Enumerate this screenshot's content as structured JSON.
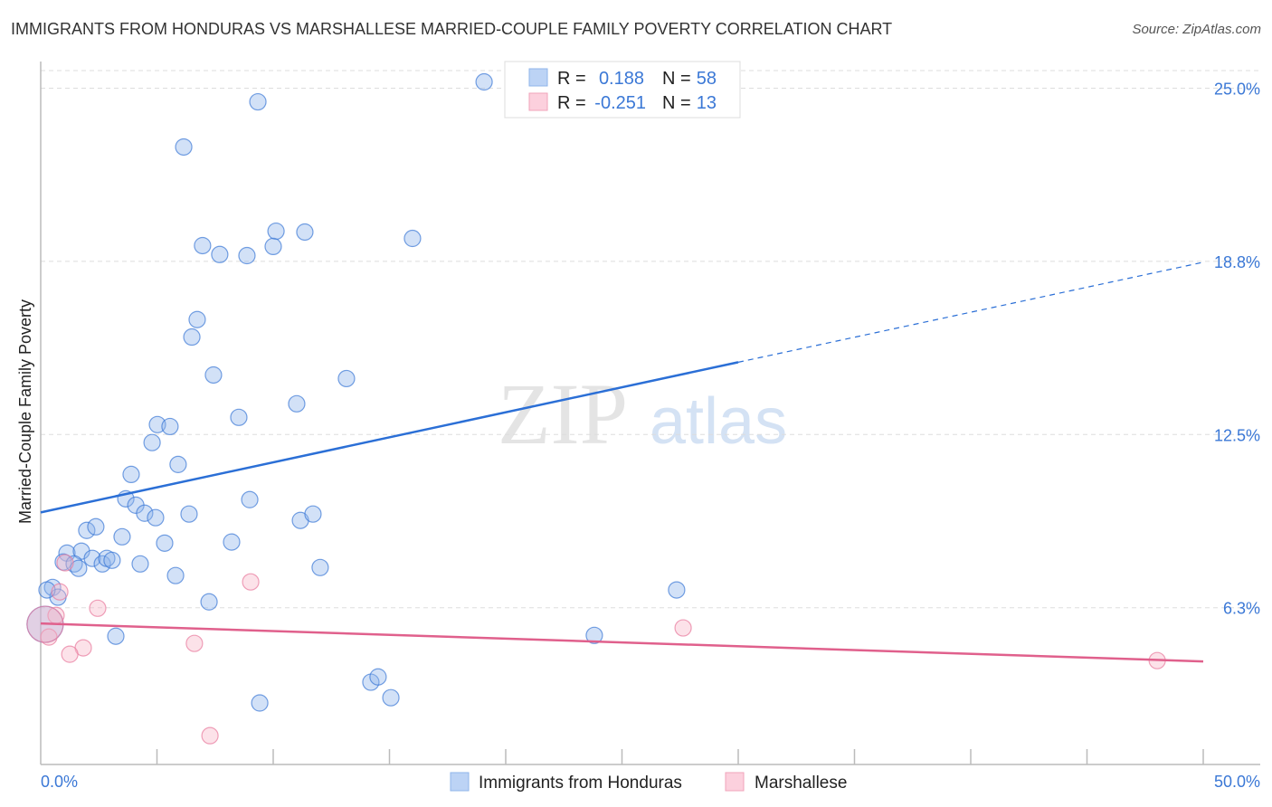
{
  "title": "IMMIGRANTS FROM HONDURAS VS MARSHALLESE MARRIED-COUPLE FAMILY POVERTY CORRELATION CHART",
  "source": "Source: ZipAtlas.com",
  "watermark": {
    "zip": "ZIP",
    "atlas": "atlas"
  },
  "chart_data": {
    "type": "scatter",
    "title": "IMMIGRANTS FROM HONDURAS VS MARSHALLESE MARRIED-COUPLE FAMILY POVERTY CORRELATION CHART",
    "xlabel": "",
    "ylabel": "Married-Couple Family Poverty",
    "xlim": [
      0,
      50
    ],
    "ylim": [
      0.59,
      25.9
    ],
    "x_tick_labels": [
      "0.0%",
      "50.0%"
    ],
    "y_ticks": [
      {
        "value": 25.0,
        "label": "25.0%"
      },
      {
        "value": 18.75,
        "label": "18.8%"
      },
      {
        "value": 12.5,
        "label": "12.5%"
      },
      {
        "value": 6.25,
        "label": "6.3%"
      }
    ],
    "grid": true,
    "legend_stats": [
      {
        "r_label": "R =",
        "r": "0.188",
        "n_label": "N =",
        "n": "58"
      },
      {
        "r_label": "R =",
        "r": "-0.251",
        "n_label": "N =",
        "n": "13"
      }
    ],
    "series": [
      {
        "name": "Immigrants from Honduras",
        "color": "#8fb4ea",
        "stroke": "#3b78d6",
        "trend": {
          "x": [
            0,
            30,
            50
          ],
          "y": [
            9.69,
            15.11,
            18.72
          ],
          "solid_to": 30
        },
        "points": [
          [
            19.07,
            25.23
          ],
          [
            9.34,
            24.51
          ],
          [
            6.15,
            22.88
          ],
          [
            10.12,
            19.84
          ],
          [
            11.36,
            19.81
          ],
          [
            6.96,
            19.32
          ],
          [
            10.0,
            19.29
          ],
          [
            7.7,
            19.0
          ],
          [
            8.87,
            18.96
          ],
          [
            15.99,
            19.58
          ],
          [
            6.73,
            16.65
          ],
          [
            6.5,
            16.02
          ],
          [
            7.43,
            14.65
          ],
          [
            13.15,
            14.52
          ],
          [
            11.01,
            13.61
          ],
          [
            5.02,
            12.86
          ],
          [
            5.56,
            12.79
          ],
          [
            8.52,
            13.12
          ],
          [
            4.79,
            12.21
          ],
          [
            5.91,
            11.42
          ],
          [
            3.89,
            11.06
          ],
          [
            3.66,
            10.18
          ],
          [
            4.09,
            9.95
          ],
          [
            4.47,
            9.66
          ],
          [
            4.94,
            9.5
          ],
          [
            6.38,
            9.63
          ],
          [
            8.99,
            10.15
          ],
          [
            11.17,
            9.4
          ],
          [
            11.71,
            9.63
          ],
          [
            1.98,
            9.04
          ],
          [
            2.37,
            9.17
          ],
          [
            3.5,
            8.81
          ],
          [
            5.33,
            8.58
          ],
          [
            8.21,
            8.62
          ],
          [
            1.13,
            8.22
          ],
          [
            1.75,
            8.29
          ],
          [
            0.97,
            7.9
          ],
          [
            1.44,
            7.83
          ],
          [
            1.63,
            7.67
          ],
          [
            2.22,
            8.03
          ],
          [
            2.65,
            7.83
          ],
          [
            2.84,
            8.03
          ],
          [
            3.07,
            7.96
          ],
          [
            4.28,
            7.83
          ],
          [
            5.8,
            7.41
          ],
          [
            12.02,
            7.7
          ],
          [
            0.51,
            6.98
          ],
          [
            0.74,
            6.63
          ],
          [
            7.24,
            6.46
          ],
          [
            27.35,
            6.89
          ],
          [
            23.81,
            5.25
          ],
          [
            3.23,
            5.22
          ],
          [
            14.2,
            3.56
          ],
          [
            14.51,
            3.75
          ],
          [
            15.06,
            3.0
          ],
          [
            9.42,
            2.81
          ],
          [
            0.27,
            6.89
          ],
          [
            0.19,
            5.65
          ]
        ]
      },
      {
        "name": "Marshallese",
        "color": "#f7b6c8",
        "stroke": "#e8799d",
        "trend": {
          "x": [
            0,
            50
          ],
          "y": [
            5.68,
            4.31
          ],
          "solid_to": 50
        },
        "points": [
          [
            0.82,
            6.82
          ],
          [
            2.45,
            6.23
          ],
          [
            0.66,
            5.97
          ],
          [
            9.03,
            7.18
          ],
          [
            1.05,
            7.87
          ],
          [
            0.35,
            5.19
          ],
          [
            1.83,
            4.8
          ],
          [
            1.25,
            4.57
          ],
          [
            6.61,
            4.96
          ],
          [
            7.28,
            1.63
          ],
          [
            27.63,
            5.52
          ],
          [
            48.02,
            4.34
          ],
          [
            0.19,
            5.65
          ]
        ]
      }
    ]
  }
}
